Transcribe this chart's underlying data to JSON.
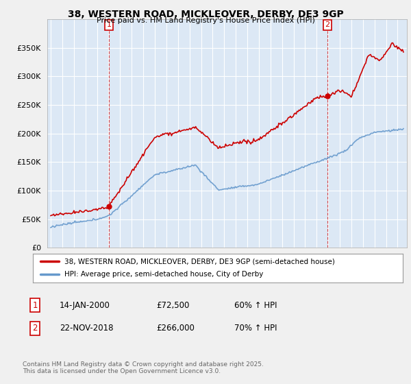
{
  "title": "38, WESTERN ROAD, MICKLEOVER, DERBY, DE3 9GP",
  "subtitle": "Price paid vs. HM Land Registry's House Price Index (HPI)",
  "property_label": "38, WESTERN ROAD, MICKLEOVER, DERBY, DE3 9GP (semi-detached house)",
  "hpi_label": "HPI: Average price, semi-detached house, City of Derby",
  "property_color": "#cc0000",
  "hpi_color": "#6699cc",
  "annotation1": [
    "1",
    "14-JAN-2000",
    "£72,500",
    "60% ↑ HPI"
  ],
  "annotation2": [
    "2",
    "22-NOV-2018",
    "£266,000",
    "70% ↑ HPI"
  ],
  "footer": "Contains HM Land Registry data © Crown copyright and database right 2025.\nThis data is licensed under the Open Government Licence v3.0.",
  "ylim": [
    0,
    400000
  ],
  "yticks": [
    0,
    50000,
    100000,
    150000,
    200000,
    250000,
    300000,
    350000
  ],
  "background_color": "#f0f0f0",
  "plot_background": "#dce8f5"
}
